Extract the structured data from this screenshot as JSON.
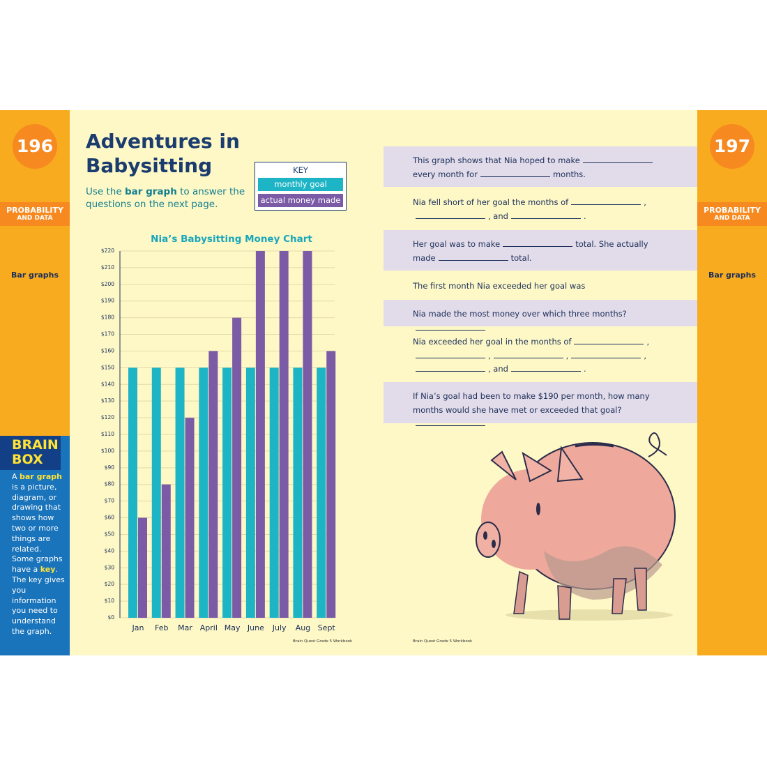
{
  "left_page": {
    "page_number": "196",
    "section": [
      "PROBABILITY",
      "AND DATA"
    ],
    "topic": "Bar graphs",
    "footer": "Brain Quest Grade 5 Workbook"
  },
  "right_page": {
    "page_number": "197",
    "section": [
      "PROBABILITY",
      "AND DATA"
    ],
    "topic": "Bar graphs",
    "footer": "Brain Quest Grade 5 Workbook"
  },
  "title": "Adventures in Babysitting",
  "instructions": [
    "Use the ",
    "bar graph",
    " to answer the questions on the next page."
  ],
  "key_title": "KEY",
  "brain_box": {
    "title": "BRAIN BOX",
    "text": [
      "A ",
      "bar graph",
      " is a picture, diagram, or drawing that shows how two or more things are related. Some graphs have a ",
      "key",
      ". The key gives you information you need to understand the graph."
    ]
  },
  "chart_data": {
    "type": "bar",
    "title": "Nia’s Babysitting Money Chart",
    "categories": [
      "Jan",
      "Feb",
      "Mar",
      "April",
      "May",
      "June",
      "July",
      "Aug",
      "Sept"
    ],
    "series": [
      {
        "name": "monthly goal",
        "color": "#1db4c6",
        "values": [
          150,
          150,
          150,
          150,
          150,
          150,
          150,
          150,
          150
        ]
      },
      {
        "name": "actual money made",
        "color": "#7b5aa6",
        "values": [
          60,
          80,
          120,
          160,
          180,
          220,
          220,
          220,
          160
        ]
      }
    ],
    "ylim": [
      0,
      220
    ],
    "yticks": [
      {
        "value": 0,
        "label": "$0"
      },
      {
        "value": 10,
        "label": "$10"
      },
      {
        "value": 20,
        "label": "$20"
      },
      {
        "value": 30,
        "label": "$30"
      },
      {
        "value": 40,
        "label": "$40"
      },
      {
        "value": 50,
        "label": "$50"
      },
      {
        "value": 60,
        "label": "$60"
      },
      {
        "value": 70,
        "label": "$70"
      },
      {
        "value": 80,
        "label": "$80"
      },
      {
        "value": 90,
        "label": "$90"
      },
      {
        "value": 100,
        "label": "$100"
      },
      {
        "value": 110,
        "label": "$110"
      },
      {
        "value": 120,
        "label": "$120"
      },
      {
        "value": 130,
        "label": "$130"
      },
      {
        "value": 140,
        "label": "$140"
      },
      {
        "value": 150,
        "label": "$150"
      },
      {
        "value": 160,
        "label": "$160"
      },
      {
        "value": 170,
        "label": "$170"
      },
      {
        "value": 180,
        "label": "$180"
      },
      {
        "value": 190,
        "label": "$190"
      },
      {
        "value": 200,
        "label": "$200"
      },
      {
        "value": 210,
        "label": "$210"
      },
      {
        "value": 220,
        "label": "$220"
      }
    ],
    "grid": true
  },
  "questions": [
    {
      "parts": [
        "This graph shows that Nia hoped to make",
        "every month for",
        "months."
      ]
    },
    {
      "parts": [
        "Nia fell short of her goal the months of",
        ",",
        ", and",
        "."
      ]
    },
    {
      "parts": [
        "Her goal was to make",
        "total. She actually made",
        "total."
      ]
    },
    {
      "parts": [
        "The first month Nia exceeded her goal was",
        "."
      ]
    },
    {
      "parts": [
        "Nia made the most money over which three months?"
      ],
      "ends_with_blank": true
    },
    {
      "parts": [
        "Nia exceeded her goal in the months of",
        ",",
        ",",
        ",",
        ",",
        ", and",
        "."
      ]
    },
    {
      "parts": [
        "If Nia’s goal had been to make $190 per month, how many months would she have met or exceeded that goal?"
      ],
      "ends_with_blank": true
    }
  ]
}
